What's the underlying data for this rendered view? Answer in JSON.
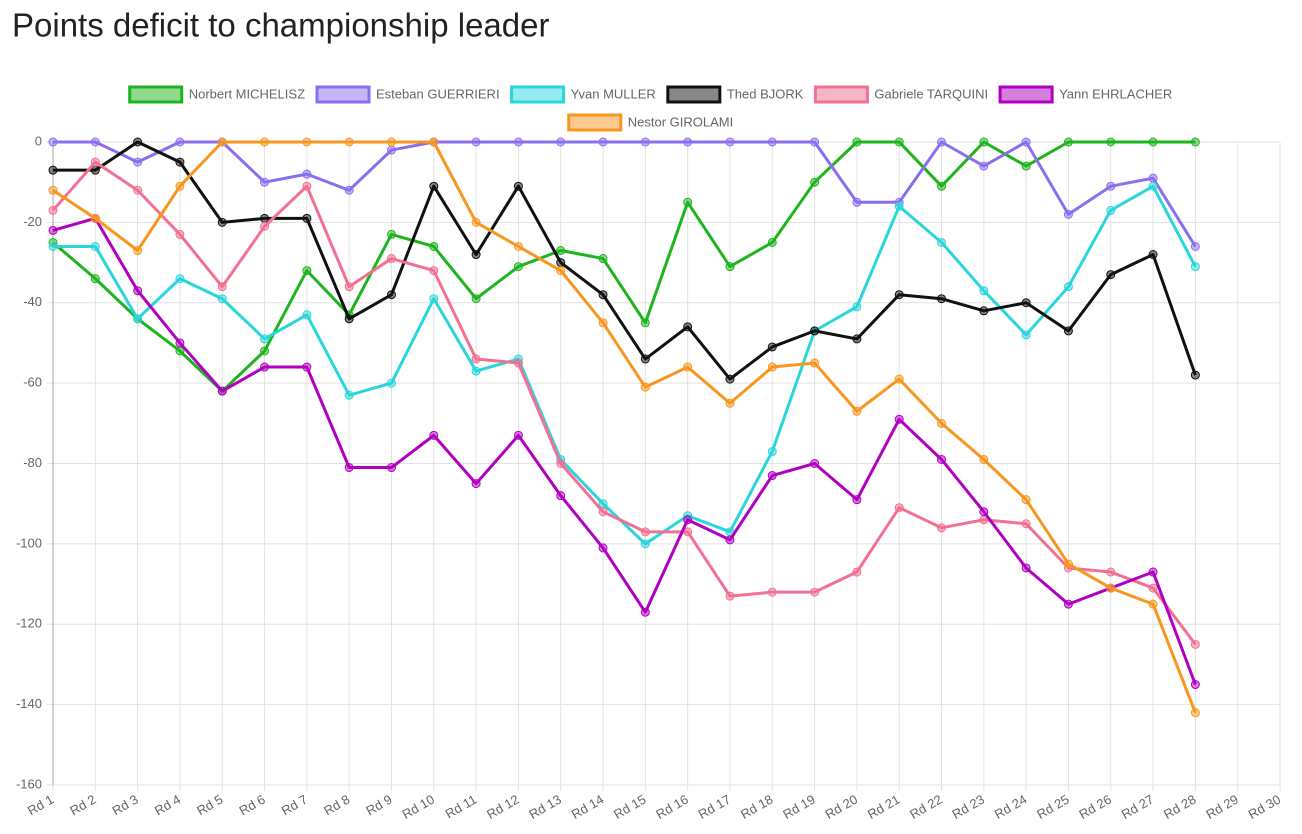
{
  "chart_data": {
    "type": "line",
    "title": "Points deficit to championship leader",
    "categories": [
      "Rd 1",
      "Rd 2",
      "Rd 3",
      "Rd 4",
      "Rd 5",
      "Rd 6",
      "Rd 7",
      "Rd 8",
      "Rd 9",
      "Rd 10",
      "Rd 11",
      "Rd 12",
      "Rd 13",
      "Rd 14",
      "Rd 15",
      "Rd 16",
      "Rd 17",
      "Rd 18",
      "Rd 19",
      "Rd 20",
      "Rd 21",
      "Rd 22",
      "Rd 23",
      "Rd 24",
      "Rd 25",
      "Rd 26",
      "Rd 27",
      "Rd 28",
      "Rd 29",
      "Rd 30"
    ],
    "ylim": [
      -160,
      0
    ],
    "yticks": [
      0,
      -20,
      -40,
      -60,
      -80,
      -100,
      -120,
      -140,
      -160
    ],
    "grid": true,
    "series": [
      {
        "name": "Norbert MICHELISZ",
        "color": "#1eb41e",
        "values": [
          -25,
          -34,
          -44,
          -52,
          -62,
          -52,
          -32,
          -43,
          -23,
          -26,
          -39,
          -31,
          -27,
          -29,
          -45,
          -15,
          -31,
          -25,
          -10,
          0,
          0,
          -11,
          0,
          -6,
          0,
          0,
          0,
          0,
          null,
          null
        ]
      },
      {
        "name": "Esteban GUERRIERI",
        "color": "#8b6ef0",
        "values": [
          0,
          0,
          -5,
          0,
          0,
          -10,
          -8,
          -12,
          -2,
          0,
          0,
          0,
          0,
          0,
          0,
          0,
          0,
          0,
          0,
          -15,
          -15,
          0,
          -6,
          0,
          -18,
          -11,
          -9,
          -26,
          null,
          null
        ]
      },
      {
        "name": "Yvan MULLER",
        "color": "#2ad6dc",
        "values": [
          -26,
          -26,
          -44,
          -34,
          -39,
          -49,
          -43,
          -63,
          -60,
          -39,
          -57,
          -54,
          -79,
          -90,
          -100,
          -93,
          -97,
          -77,
          -47,
          -41,
          -16,
          -25,
          -37,
          -48,
          -36,
          -17,
          -11,
          -31,
          null,
          null
        ]
      },
      {
        "name": "Thed BJORK",
        "color": "#111111",
        "values": [
          -7,
          -7,
          0,
          -5,
          -20,
          -19,
          -19,
          -44,
          -38,
          -11,
          -28,
          -11,
          -30,
          -38,
          -54,
          -46,
          -59,
          -51,
          -47,
          -49,
          -38,
          -39,
          -42,
          -40,
          -47,
          -33,
          -28,
          -58,
          null,
          null
        ]
      },
      {
        "name": "Gabriele TARQUINI",
        "color": "#f27091",
        "values": [
          -17,
          -5,
          -12,
          -23,
          -36,
          -21,
          -11,
          -36,
          -29,
          -32,
          -54,
          -55,
          -80,
          -92,
          -97,
          -97,
          -113,
          -112,
          -112,
          -107,
          -91,
          -96,
          -94,
          -95,
          -106,
          -107,
          -111,
          -125,
          null,
          null
        ]
      },
      {
        "name": "Yann EHRLACHER",
        "color": "#b000c0",
        "values": [
          -22,
          -19,
          -37,
          -50,
          -62,
          -56,
          -56,
          -81,
          -81,
          -73,
          -85,
          -73,
          -88,
          -101,
          -117,
          -94,
          -99,
          -83,
          -80,
          -89,
          -69,
          -79,
          -92,
          -106,
          -115,
          -111,
          -107,
          -135,
          null,
          null
        ]
      },
      {
        "name": "Nestor GIROLAMI",
        "color": "#f8961e",
        "values": [
          -12,
          -19,
          -27,
          -11,
          0,
          0,
          0,
          0,
          0,
          0,
          -20,
          -26,
          -32,
          -45,
          -61,
          -56,
          -65,
          -56,
          -55,
          -67,
          -59,
          -70,
          -79,
          -89,
          -105,
          -111,
          -115,
          -142,
          null,
          null
        ]
      }
    ]
  }
}
